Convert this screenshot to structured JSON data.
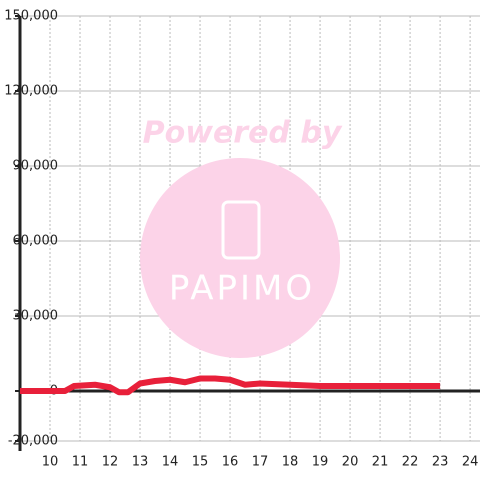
{
  "chart_data": {
    "type": "line",
    "x": [
      9,
      10.5,
      10.8,
      11.5,
      12,
      12.3,
      12.6,
      13,
      13.5,
      14,
      14.5,
      15,
      15.5,
      16,
      16.5,
      17,
      18,
      19,
      23
    ],
    "series": [
      {
        "color": "#e8203a",
        "values": [
          0,
          0,
          2000,
          2500,
          1500,
          -500,
          -500,
          3000,
          4000,
          4500,
          3500,
          5000,
          5000,
          4500,
          2500,
          3000,
          2500,
          2000,
          2000
        ]
      }
    ],
    "xlim": [
      9,
      24.33
    ],
    "xticks": [
      10,
      11,
      12,
      13,
      14,
      15,
      16,
      17,
      18,
      19,
      20,
      21,
      22,
      23,
      24
    ],
    "ylim": [
      -20000,
      150000
    ],
    "yticks": [
      {
        "value": -20000,
        "label": "-20,000"
      },
      0,
      {
        "value": 30000,
        "label": "30,000"
      },
      {
        "value": 60000,
        "label": "60,000"
      },
      {
        "value": 90000,
        "label": "90,000"
      },
      {
        "value": 120000,
        "label": "120,000"
      },
      {
        "value": 150000,
        "label": "150,000"
      }
    ],
    "grid": true,
    "watermark": {
      "top": "Powered by",
      "logo": "PAPIMO"
    }
  }
}
